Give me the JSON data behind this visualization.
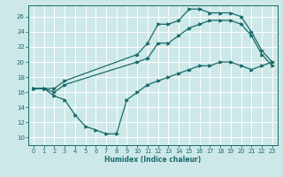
{
  "xlabel": "Humidex (Indice chaleur)",
  "bg_color": "#cde8e8",
  "grid_color": "#ffffff",
  "line_color": "#1a6b6b",
  "xlim": [
    -0.5,
    23.5
  ],
  "ylim": [
    9.0,
    27.5
  ],
  "xticks": [
    0,
    1,
    2,
    3,
    4,
    5,
    6,
    7,
    8,
    9,
    10,
    11,
    12,
    13,
    14,
    15,
    16,
    17,
    18,
    19,
    20,
    21,
    22,
    23
  ],
  "yticks": [
    10,
    12,
    14,
    16,
    18,
    20,
    22,
    24,
    26
  ],
  "line1_x": [
    0,
    1,
    2,
    3,
    10,
    11,
    12,
    13,
    14,
    15,
    16,
    17,
    18,
    19,
    20,
    21,
    22,
    23
  ],
  "line1_y": [
    16.5,
    16.5,
    16.5,
    17.5,
    21.0,
    22.5,
    25.0,
    25.0,
    25.5,
    27.0,
    27.0,
    26.5,
    26.5,
    26.5,
    26.0,
    24.0,
    21.5,
    20.0
  ],
  "line2_x": [
    0,
    1,
    2,
    3,
    10,
    11,
    12,
    13,
    14,
    15,
    16,
    17,
    18,
    19,
    20,
    21,
    22,
    23
  ],
  "line2_y": [
    16.5,
    16.5,
    16.0,
    17.0,
    20.0,
    20.5,
    22.5,
    22.5,
    23.5,
    24.5,
    25.0,
    25.5,
    25.5,
    25.5,
    25.0,
    23.5,
    21.0,
    19.5
  ],
  "line3_x": [
    0,
    1,
    2,
    3,
    4,
    5,
    6,
    7,
    8,
    9,
    10,
    11,
    12,
    13,
    14,
    15,
    16,
    17,
    18,
    19,
    20,
    21,
    22,
    23
  ],
  "line3_y": [
    16.5,
    16.5,
    15.5,
    15.0,
    13.0,
    11.5,
    11.0,
    10.5,
    10.5,
    15.0,
    16.0,
    17.0,
    17.5,
    18.0,
    18.5,
    19.0,
    19.5,
    19.5,
    20.0,
    20.0,
    19.5,
    19.0,
    19.5,
    20.0
  ]
}
